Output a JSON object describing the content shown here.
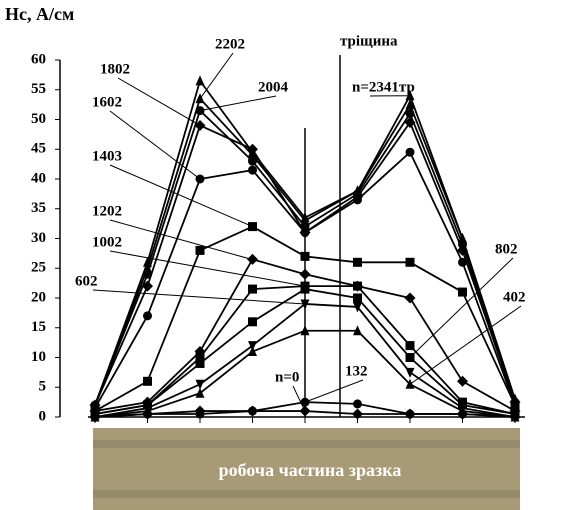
{
  "chart_data": {
    "type": "line",
    "y_label": "Hc, А/см",
    "categories": [
      null,
      null,
      null,
      null,
      null,
      null,
      null,
      null,
      null
    ],
    "ylim": [
      0,
      60
    ],
    "yticks": [
      0,
      5,
      10,
      15,
      20,
      25,
      30,
      35,
      40,
      45,
      50,
      55,
      60
    ],
    "crack_label": "тріщина",
    "specimen_label": "робоча частина зразка",
    "series": [
      {
        "name": "n=0",
        "color": "#000000",
        "marker": "diamond",
        "values": [
          0,
          0.5,
          1,
          1,
          1,
          0.5,
          0.5,
          0.5,
          0
        ]
      },
      {
        "name": "132",
        "color": "#000000",
        "marker": "circle",
        "values": [
          0,
          0.5,
          0.5,
          1,
          2.5,
          2.2,
          0.5,
          0.5,
          0
        ]
      },
      {
        "name": "402",
        "color": "#000000",
        "marker": "triangle",
        "values": [
          0,
          1,
          4,
          11,
          14.5,
          14.5,
          5.5,
          1,
          0
        ]
      },
      {
        "name": "602",
        "color": "#000000",
        "marker": "tri-down",
        "values": [
          0,
          1.5,
          5.5,
          12,
          19,
          18.5,
          7.5,
          1.5,
          0
        ]
      },
      {
        "name": "802",
        "color": "#000000",
        "marker": "square",
        "values": [
          0.5,
          2,
          9,
          16,
          21.5,
          20,
          10,
          2,
          0.5
        ]
      },
      {
        "name": "1002",
        "color": "#000000",
        "marker": "square",
        "values": [
          0.5,
          2,
          10,
          21.5,
          22,
          22,
          12,
          2.5,
          0.5
        ]
      },
      {
        "name": "1202",
        "color": "#000000",
        "marker": "diamond",
        "values": [
          1,
          2.5,
          11,
          26.5,
          24,
          22,
          20,
          6,
          1
        ]
      },
      {
        "name": "1403",
        "color": "#000000",
        "marker": "square",
        "values": [
          1,
          6,
          28,
          32,
          27,
          26,
          26,
          21,
          2
        ]
      },
      {
        "name": "1602",
        "color": "#000000",
        "marker": "circle",
        "values": [
          1.5,
          17,
          40,
          41.5,
          31,
          36.5,
          44.5,
          26,
          2
        ]
      },
      {
        "name": "1802",
        "color": "#000000",
        "marker": "diamond",
        "values": [
          2,
          22,
          49,
          45,
          31,
          37,
          49.5,
          28,
          2.5
        ]
      },
      {
        "name": "2004",
        "color": "#000000",
        "marker": "circle",
        "values": [
          2,
          24,
          51.5,
          43,
          32,
          37.5,
          51,
          29,
          2.5
        ]
      },
      {
        "name": "2202",
        "color": "#000000",
        "marker": "triangle",
        "values": [
          2,
          25,
          53.5,
          44,
          33,
          38,
          52.5,
          30,
          2.5
        ]
      },
      {
        "name": "n=2341тр",
        "color": "#000000",
        "marker": "triangle",
        "values": [
          2,
          26,
          56.5,
          44.5,
          33.5,
          38,
          54,
          30,
          3
        ]
      }
    ]
  }
}
